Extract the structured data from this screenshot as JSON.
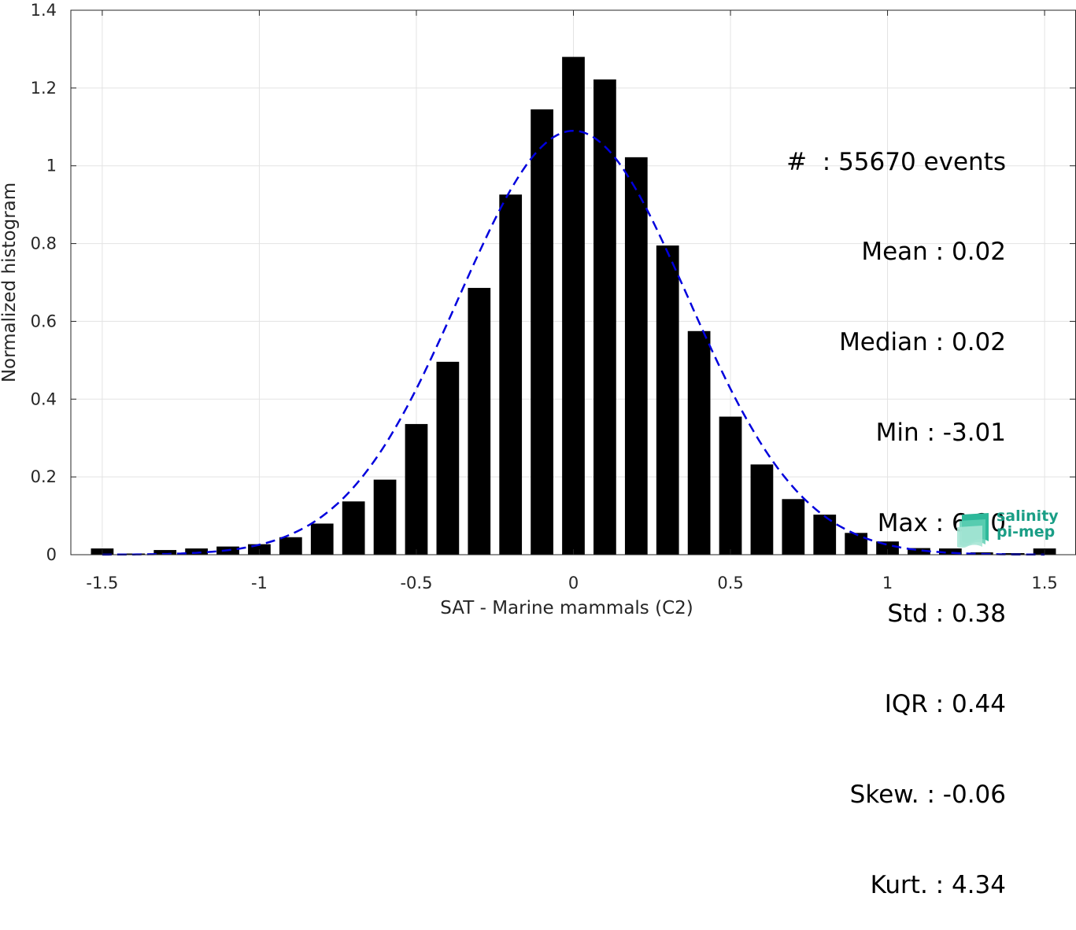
{
  "chart_data": {
    "type": "bar",
    "xlabel": "SAT - Marine mammals (C2)",
    "ylabel": "Normalized histogram",
    "xlim": [
      -1.6,
      1.6
    ],
    "ylim": [
      0,
      1.4
    ],
    "xticks": [
      "-1.5",
      "-1",
      "-0.5",
      "0",
      "0.5",
      "1",
      "1.5"
    ],
    "xtick_values": [
      -1.5,
      -1,
      -0.5,
      0,
      0.5,
      1,
      1.5
    ],
    "yticks": [
      "0",
      "0.2",
      "0.4",
      "0.6",
      "0.8",
      "1",
      "1.2",
      "1.4"
    ],
    "ytick_values": [
      0,
      0.2,
      0.4,
      0.6,
      0.8,
      1.0,
      1.2,
      1.4
    ],
    "grid": true,
    "bar_color": "#000000",
    "fit_color": "#0000dd",
    "bars": {
      "x": [
        -1.5,
        -1.4,
        -1.3,
        -1.2,
        -1.1,
        -1.0,
        -0.9,
        -0.8,
        -0.7,
        -0.6,
        -0.5,
        -0.4,
        -0.3,
        -0.2,
        -0.1,
        0.0,
        0.1,
        0.2,
        0.3,
        0.4,
        0.5,
        0.6,
        0.7,
        0.8,
        0.9,
        1.0,
        1.1,
        1.2,
        1.3,
        1.4,
        1.5
      ],
      "values": [
        0.016,
        0.003,
        0.012,
        0.016,
        0.021,
        0.027,
        0.045,
        0.08,
        0.137,
        0.193,
        0.336,
        0.496,
        0.686,
        0.926,
        1.145,
        1.28,
        1.222,
        1.022,
        0.795,
        0.575,
        0.355,
        0.232,
        0.143,
        0.103,
        0.056,
        0.034,
        0.017,
        0.016,
        0.006,
        0.004,
        0.016
      ]
    },
    "fit_curve": {
      "style": "dashed",
      "mean": 0.0,
      "std": 0.365,
      "peak": 1.09
    }
  },
  "stats": [
    "#  : 55670 events",
    "Mean : 0.02",
    "Median : 0.02",
    "Min : -3.01",
    "Max : 6.20",
    "Std : 0.38",
    "IQR : 0.44",
    "Skew. : -0.06",
    "Kurt. : 4.34"
  ],
  "logo": {
    "line1": "salinity",
    "line2": "pi-mep",
    "color": "#1a9e86"
  }
}
